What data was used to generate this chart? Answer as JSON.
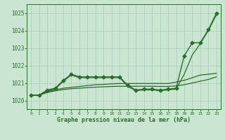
{
  "title": "Graphe pression niveau de la mer (hPa)",
  "background_color": "#c8e6d0",
  "grid_color": "#aaccbb",
  "line_color": "#2d6a2d",
  "xlim": [
    -0.5,
    23.5
  ],
  "ylim": [
    1019.5,
    1025.5
  ],
  "yticks": [
    1020,
    1021,
    1022,
    1023,
    1024,
    1025
  ],
  "xticks": [
    0,
    1,
    2,
    3,
    4,
    5,
    6,
    7,
    8,
    9,
    10,
    11,
    12,
    13,
    14,
    15,
    16,
    17,
    18,
    19,
    20,
    21,
    22,
    23
  ],
  "series": [
    {
      "x": [
        0,
        1,
        2,
        3,
        4,
        5,
        6,
        7,
        8,
        9,
        10,
        11,
        12,
        13,
        14,
        15,
        16,
        17,
        18,
        19,
        20,
        21,
        22,
        23
      ],
      "y": [
        1020.3,
        1020.3,
        1020.6,
        1020.7,
        1021.15,
        1021.5,
        1021.35,
        1021.35,
        1021.35,
        1021.35,
        1021.35,
        1021.35,
        1020.85,
        1020.6,
        1020.65,
        1020.65,
        1020.6,
        1020.65,
        1020.7,
        1022.55,
        1023.3,
        1023.3,
        1024.05,
        1025.0
      ],
      "marker": "D",
      "markersize": 2.5,
      "linewidth": 1.0
    },
    {
      "x": [
        0,
        1,
        2,
        3,
        4,
        5,
        6,
        7,
        8,
        9,
        10,
        11,
        12,
        13,
        14,
        15,
        16,
        17,
        18,
        19,
        20,
        21,
        22,
        23
      ],
      "y": [
        1020.3,
        1020.3,
        1020.55,
        1020.65,
        1021.1,
        1021.45,
        1021.3,
        1021.3,
        1021.3,
        1021.3,
        1021.3,
        1021.3,
        1020.8,
        1020.55,
        1020.6,
        1020.6,
        1020.55,
        1020.6,
        1020.65,
        1021.5,
        1022.6,
        1023.25,
        1024.0,
        1024.9
      ],
      "marker": null,
      "markersize": 0,
      "linewidth": 0.9
    },
    {
      "x": [
        0,
        1,
        2,
        3,
        4,
        5,
        6,
        7,
        8,
        9,
        10,
        11,
        12,
        13,
        14,
        15,
        16,
        17,
        18,
        19,
        20,
        21,
        22,
        23
      ],
      "y": [
        1020.3,
        1020.3,
        1020.5,
        1020.6,
        1020.7,
        1020.75,
        1020.8,
        1020.85,
        1020.9,
        1020.92,
        1020.95,
        1020.97,
        1020.97,
        1020.97,
        1020.97,
        1020.97,
        1020.97,
        1020.97,
        1021.05,
        1021.15,
        1021.3,
        1021.45,
        1021.5,
        1021.55
      ],
      "marker": null,
      "markersize": 0,
      "linewidth": 0.9
    },
    {
      "x": [
        0,
        1,
        2,
        3,
        4,
        5,
        6,
        7,
        8,
        9,
        10,
        11,
        12,
        13,
        14,
        15,
        16,
        17,
        18,
        19,
        20,
        21,
        22,
        23
      ],
      "y": [
        1020.3,
        1020.3,
        1020.45,
        1020.55,
        1020.62,
        1020.67,
        1020.7,
        1020.73,
        1020.76,
        1020.78,
        1020.8,
        1020.81,
        1020.81,
        1020.81,
        1020.81,
        1020.81,
        1020.8,
        1020.8,
        1020.83,
        1020.9,
        1021.0,
        1021.1,
        1021.2,
        1021.35
      ],
      "marker": null,
      "markersize": 0,
      "linewidth": 0.9
    }
  ]
}
